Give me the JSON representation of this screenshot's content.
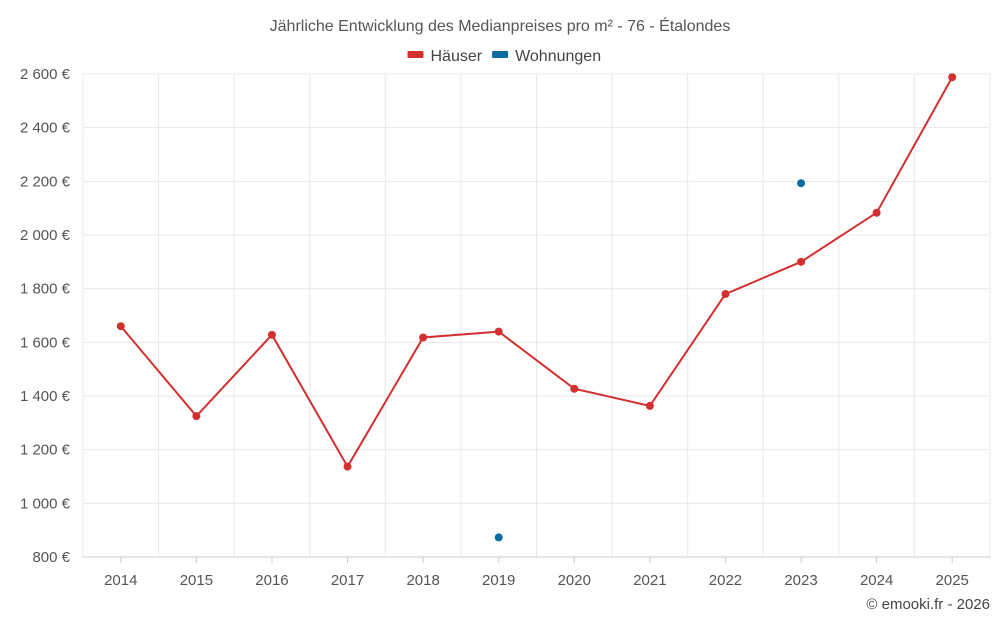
{
  "chart_data": {
    "type": "line",
    "title": "Jährliche Entwicklung des Medianpreises pro m² - 76 - Étalondes",
    "categories": [
      "2014",
      "2015",
      "2016",
      "2017",
      "2018",
      "2019",
      "2020",
      "2021",
      "2022",
      "2023",
      "2024",
      "2025"
    ],
    "y_ticks": [
      800,
      1000,
      1200,
      1400,
      1600,
      1800,
      2000,
      2200,
      2400,
      2600
    ],
    "y_tick_labels": [
      "800 €",
      "1 000 €",
      "1 200 €",
      "1 400 €",
      "1 600 €",
      "1 800 €",
      "2 000 €",
      "2 200 €",
      "2 400 €",
      "2 600 €"
    ],
    "ylim": [
      800,
      2600
    ],
    "grid": true,
    "legend_position": "top-center",
    "series": [
      {
        "name": "Häuser",
        "color": "#d32f2f",
        "style": "line-with-markers",
        "values": [
          1660,
          1325,
          1628,
          1137,
          1618,
          1640,
          1427,
          1363,
          1780,
          1900,
          2083,
          2588
        ]
      },
      {
        "name": "Wohnungen",
        "color": "#0b6aa2",
        "style": "markers-only",
        "values": [
          null,
          null,
          null,
          null,
          null,
          873,
          null,
          null,
          null,
          2193,
          null,
          null
        ]
      }
    ]
  },
  "credit": "© emooki.fr - 2026"
}
